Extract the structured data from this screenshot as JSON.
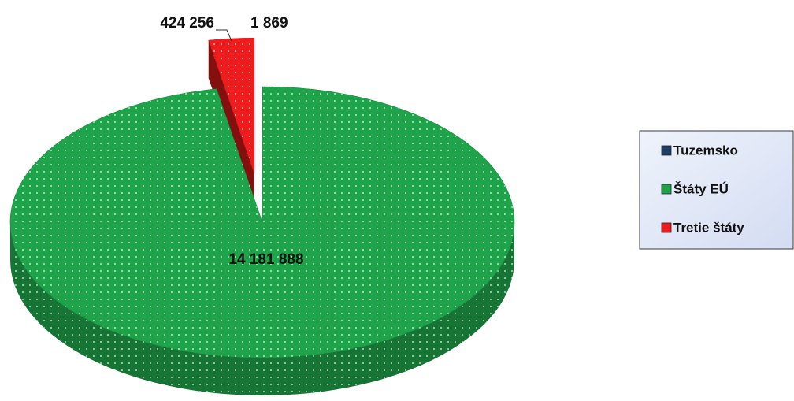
{
  "chart_data": {
    "type": "pie",
    "categories": [
      "Tuzemsko",
      "Štáty EÚ",
      "Tretie štáty"
    ],
    "values": [
      1869,
      14181888,
      424256
    ],
    "value_labels": [
      "1 869",
      "14 181 888",
      "424 256"
    ],
    "colors": [
      "#e9eef5",
      "#1fa34a",
      "#ee1c1c"
    ],
    "legend_marker_colors": [
      "#1f3f66",
      "#1fa34a",
      "#ee1c1c"
    ],
    "legend": "right"
  }
}
